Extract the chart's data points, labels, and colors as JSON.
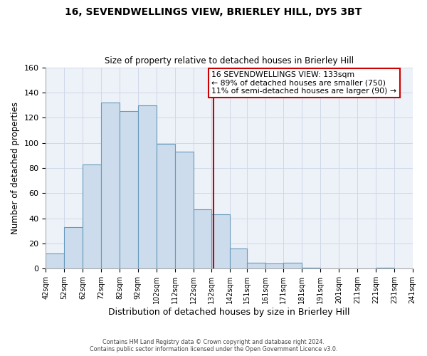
{
  "title": "16, SEVENDWELLINGS VIEW, BRIERLEY HILL, DY5 3BT",
  "subtitle": "Size of property relative to detached houses in Brierley Hill",
  "xlabel": "Distribution of detached houses by size in Brierley Hill",
  "ylabel": "Number of detached properties",
  "bin_heights": [
    12,
    33,
    83,
    132,
    125,
    130,
    99,
    93,
    47,
    43,
    16,
    5,
    4,
    5,
    1,
    0,
    0,
    0,
    1
  ],
  "bar_facecolor": "#ccdcec",
  "bar_edgecolor": "#6699bb",
  "bar_linewidth": 0.8,
  "vline_x": 133,
  "vline_color": "#cc0000",
  "vline_linewidth": 1.5,
  "annotation_line1": "16 SEVENDWELLINGS VIEW: 133sqm",
  "annotation_line2": "← 89% of detached houses are smaller (750)",
  "annotation_line3": "11% of semi-detached houses are larger (90) →",
  "box_edgecolor": "#cc0000",
  "box_facecolor": "white",
  "ylim": [
    0,
    160
  ],
  "tick_labels": [
    "42sqm",
    "52sqm",
    "62sqm",
    "72sqm",
    "82sqm",
    "92sqm",
    "102sqm",
    "112sqm",
    "122sqm",
    "132sqm",
    "142sqm",
    "151sqm",
    "161sqm",
    "171sqm",
    "181sqm",
    "191sqm",
    "201sqm",
    "211sqm",
    "221sqm",
    "231sqm",
    "241sqm"
  ],
  "tick_positions": [
    42,
    52,
    62,
    72,
    82,
    92,
    102,
    112,
    122,
    132,
    142,
    151,
    161,
    171,
    181,
    191,
    201,
    211,
    221,
    231,
    241
  ],
  "grid_color": "#d0d8e8",
  "bg_color": "#edf1f8",
  "footer_line1": "Contains HM Land Registry data © Crown copyright and database right 2024.",
  "footer_line2": "Contains public sector information licensed under the Open Government Licence v3.0."
}
